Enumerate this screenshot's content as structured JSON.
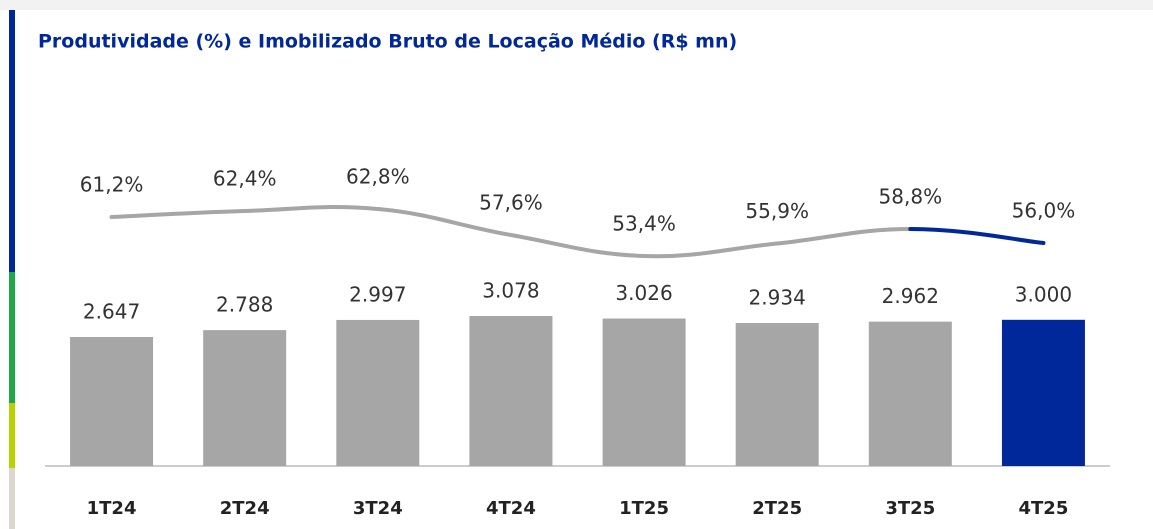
{
  "chart_data": {
    "type": "bar",
    "title": "Produtividade (%) e Imobilizado Bruto de Locação Médio (R$ mn)",
    "categories": [
      "1T24",
      "2T24",
      "3T24",
      "4T24",
      "1T25",
      "2T25",
      "3T25",
      "4T25"
    ],
    "series": [
      {
        "type": "bar",
        "values": [
          2647,
          2788,
          2997,
          3078,
          3026,
          2934,
          2962,
          3000
        ],
        "value_labels": [
          "2.647",
          "2.788",
          "2.997",
          "3.078",
          "3.026",
          "2.934",
          "2.962",
          "3.000"
        ],
        "colors": [
          "#a6a6a6",
          "#a6a6a6",
          "#a6a6a6",
          "#a6a6a6",
          "#a6a6a6",
          "#a6a6a6",
          "#a6a6a6",
          "#00289a"
        ]
      },
      {
        "type": "line",
        "values": [
          61.2,
          62.4,
          62.8,
          57.6,
          53.4,
          55.9,
          58.8,
          56.0
        ],
        "value_labels": [
          "61,2%",
          "62,4%",
          "62,8%",
          "57,6%",
          "53,4%",
          "55,9%",
          "58,8%",
          "56,0%"
        ],
        "color": "#a6a6a6",
        "highlight_color": "#00289a"
      }
    ]
  }
}
